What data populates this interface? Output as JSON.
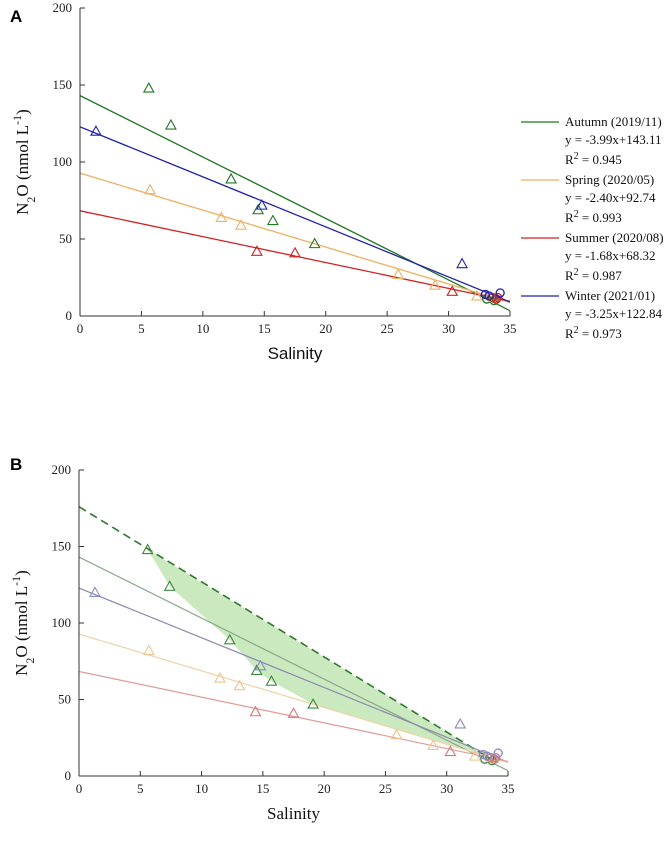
{
  "chart_data": [
    {
      "panel": "A",
      "type": "scatter",
      "xlabel": "Salinity",
      "ylabel": {
        "base": "N",
        "sub": "2",
        "mid": "O (nmol L",
        "sup": "-1",
        "end": ")"
      },
      "xlim": [
        0,
        35
      ],
      "ylim": [
        0,
        200
      ],
      "xticks": [
        0,
        5,
        10,
        15,
        20,
        25,
        30,
        35
      ],
      "yticks": [
        0,
        50,
        100,
        150,
        200
      ],
      "series": [
        {
          "key": "autumn",
          "name": "Autumn (2019/11)",
          "equation": "y = -3.99x+143.11",
          "r2_label": "R",
          "r2_sup": "2",
          "r2_value": " = 0.945",
          "color": "#1e7a1e",
          "slope": -3.99,
          "intercept": 143.11,
          "points": [
            [
              5.6,
              148
            ],
            [
              7.4,
              124
            ],
            [
              12.3,
              89
            ],
            [
              14.5,
              69
            ],
            [
              15.7,
              62
            ],
            [
              19.1,
              47
            ],
            [
              33.1,
              11
            ],
            [
              33.5,
              12
            ],
            [
              33.7,
              10
            ]
          ]
        },
        {
          "key": "spring",
          "name": "Spring (2020/05)",
          "equation": "y = -2.40x+92.74",
          "r2_label": "R",
          "r2_sup": "2",
          "r2_value": " = 0.993",
          "color": "#f0b060",
          "slope": -2.4,
          "intercept": 92.74,
          "points": [
            [
              5.7,
              82
            ],
            [
              11.5,
              64
            ],
            [
              13.1,
              59
            ],
            [
              25.9,
              27
            ],
            [
              28.9,
              20
            ],
            [
              32.3,
              13
            ],
            [
              33.4,
              12
            ]
          ]
        },
        {
          "key": "summer",
          "name": "Summer (2020/08)",
          "equation": "y = -1.68x+68.32",
          "r2_label": "R",
          "r2_sup": "2",
          "r2_value": " = 0.987",
          "color": "#d42020",
          "slope": -1.68,
          "intercept": 68.32,
          "points": [
            [
              14.4,
              42
            ],
            [
              17.5,
              41
            ],
            [
              30.3,
              16
            ],
            [
              33.6,
              12
            ],
            [
              33.9,
              11
            ],
            [
              34.0,
              12
            ]
          ]
        },
        {
          "key": "winter",
          "name": "Winter (2021/01)",
          "equation": "y = -3.25x+122.84",
          "r2_label": "R",
          "r2_sup": "2",
          "r2_value": " = 0.973",
          "color": "#2020b8",
          "slope": -3.25,
          "intercept": 122.84,
          "points": [
            [
              1.3,
              120
            ],
            [
              14.8,
              72
            ],
            [
              31.1,
              34
            ],
            [
              33.0,
              14
            ],
            [
              33.3,
              13
            ],
            [
              34.2,
              15
            ]
          ]
        }
      ]
    },
    {
      "panel": "B",
      "type": "scatter",
      "xlabel": "Salinity",
      "ylabel": {
        "base": "N",
        "sub": "2",
        "mid": "O (nmol L",
        "sup": "-1",
        "end": ")"
      },
      "xlim": [
        0,
        35
      ],
      "ylim": [
        0,
        200
      ],
      "xticks": [
        0,
        5,
        10,
        15,
        20,
        25,
        30,
        35
      ],
      "yticks": [
        0,
        50,
        100,
        150,
        200
      ],
      "dashed_line": {
        "color": "#2d7a2d",
        "points": [
          [
            0,
            176
          ],
          [
            33,
            14
          ]
        ]
      },
      "shaded_region": {
        "color": "#8ccf6e",
        "upper": [
          [
            5.6,
            148
          ],
          [
            33,
            14
          ]
        ],
        "lower": [
          [
            5.6,
            148
          ],
          [
            7.4,
            124
          ],
          [
            12.3,
            89
          ],
          [
            14.5,
            69
          ],
          [
            15.7,
            62
          ],
          [
            19.1,
            47
          ],
          [
            33,
            14
          ]
        ]
      },
      "faded_lines": [
        {
          "key": "autumn",
          "color": "#8aa88a",
          "slope": -3.99,
          "intercept": 143.11
        },
        {
          "key": "winter",
          "color": "#8a8ab0",
          "slope": -3.25,
          "intercept": 122.84
        },
        {
          "key": "spring",
          "color": "#f0d2a8",
          "slope": -2.4,
          "intercept": 92.74
        },
        {
          "key": "summer",
          "color": "#e09a9a",
          "slope": -1.68,
          "intercept": 68.32
        }
      ],
      "point_colors": {
        "autumn": "#3a8a3a",
        "spring": "#f0c48a",
        "summer": "#e07070",
        "winter": "#8a8ad0"
      }
    }
  ]
}
